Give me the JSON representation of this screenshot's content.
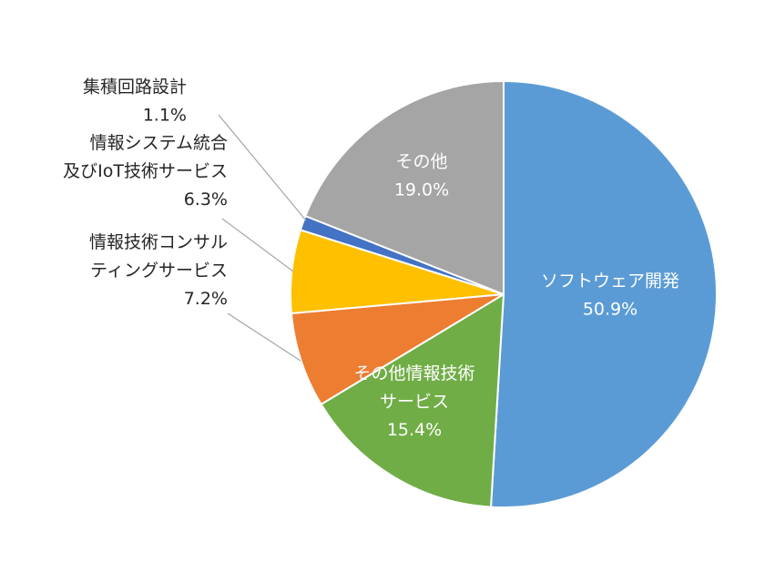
{
  "chart_data": {
    "type": "pie",
    "title": "",
    "slices": [
      {
        "label": "ソフトウェア開発",
        "label_lines": [
          "ソフトウェア開発"
        ],
        "percent_text": "50.9%",
        "value": 50.9,
        "color": "#5b9bd5",
        "label_style": "light"
      },
      {
        "label": "その他情報技術サービス",
        "label_lines": [
          "その他情報技術",
          "サービス"
        ],
        "percent_text": "15.4%",
        "value": 15.4,
        "color": "#70ad47",
        "label_style": "light"
      },
      {
        "label": "情報技術コンサルティングサービス",
        "label_lines": [
          "情報技術コンサル",
          "ティングサービス"
        ],
        "percent_text": "7.2%",
        "value": 7.2,
        "color": "#ed7d31",
        "label_style": "dark"
      },
      {
        "label": "情報システム統合及びIoT技術サービス",
        "label_lines": [
          "情報システム統合",
          "及びIoT技術サービス"
        ],
        "percent_text": "6.3%",
        "value": 6.3,
        "color": "#ffc000",
        "label_style": "dark"
      },
      {
        "label": "集積回路設計",
        "label_lines": [
          "集積回路設計"
        ],
        "percent_text": "1.1%",
        "value": 1.1,
        "color": "#4472c4",
        "label_style": "dark"
      },
      {
        "label": "その他",
        "label_lines": [
          "その他"
        ],
        "percent_text": "19.0%",
        "value": 19.0,
        "color": "#a5a5a5",
        "label_style": "light"
      }
    ],
    "start_angle_deg": 0,
    "direction": "clockwise",
    "legend": "none"
  }
}
